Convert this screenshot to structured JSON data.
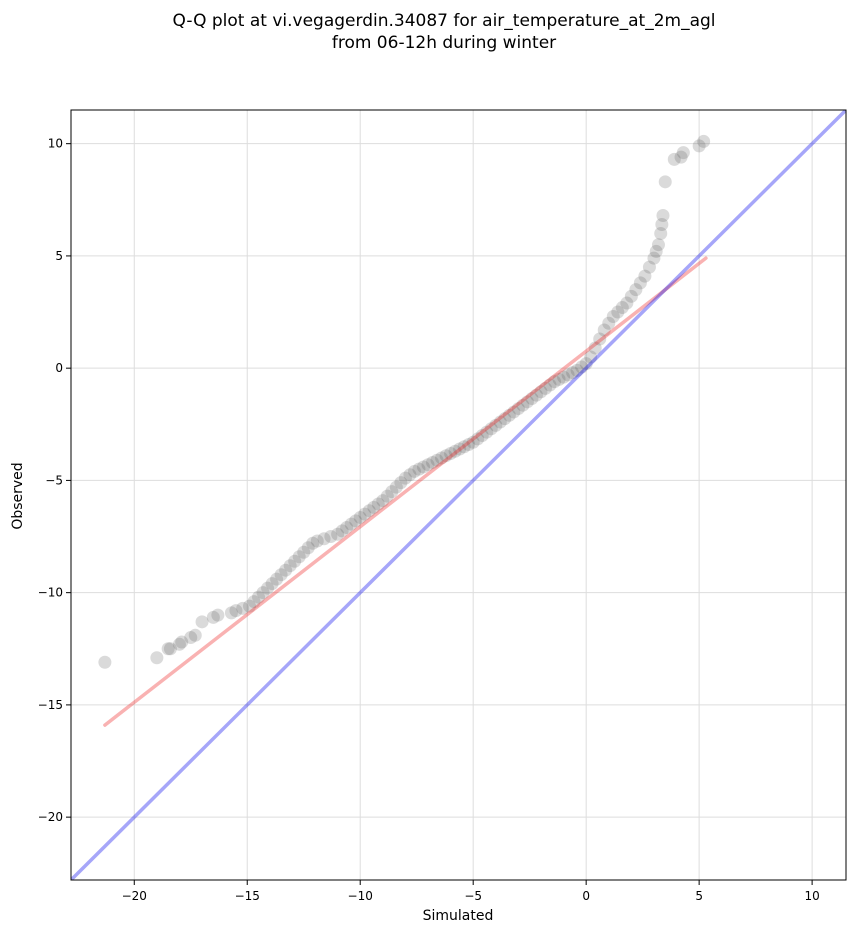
{
  "chart_data": {
    "type": "scatter",
    "title_lines": [
      "Q-Q plot at vi.vegagerdin.34087 for air_temperature_at_2m_agl",
      "from 06-12h during winter"
    ],
    "xlabel": "Simulated",
    "ylabel": "Observed",
    "xlim": [
      -22.8,
      11.5
    ],
    "ylim": [
      -22.8,
      11.5
    ],
    "xticks": [
      -20,
      -15,
      -10,
      -5,
      0,
      5,
      10
    ],
    "yticks": [
      -20,
      -15,
      -10,
      -5,
      0,
      5,
      10
    ],
    "tick_labels": [
      "−20",
      "−15",
      "−10",
      "−5",
      "0",
      "5",
      "10"
    ],
    "grid": true,
    "reference_line": {
      "color": "#0000ee",
      "x": [
        -22.8,
        11.5
      ],
      "y": [
        -22.8,
        11.5
      ]
    },
    "fit_line": {
      "color": "#ee2222",
      "x": [
        -21.3,
        5.3
      ],
      "y": [
        -15.9,
        4.9
      ]
    },
    "quantiles": {
      "color": "#555555",
      "x": [
        -21.3,
        -19.0,
        -18.5,
        -18.4,
        -18.0,
        -17.9,
        -17.5,
        -17.3,
        -17.0,
        -16.5,
        -16.3,
        -15.7,
        -15.5,
        -15.2,
        -14.9,
        -14.7,
        -14.5,
        -14.3,
        -14.1,
        -13.9,
        -13.7,
        -13.5,
        -13.3,
        -13.1,
        -12.9,
        -12.7,
        -12.5,
        -12.3,
        -12.1,
        -11.9,
        -11.6,
        -11.3,
        -11.0,
        -10.8,
        -10.6,
        -10.4,
        -10.2,
        -10.0,
        -9.8,
        -9.6,
        -9.4,
        -9.2,
        -9.0,
        -8.8,
        -8.6,
        -8.4,
        -8.2,
        -8.0,
        -7.8,
        -7.6,
        -7.4,
        -7.2,
        -7.0,
        -6.8,
        -6.6,
        -6.4,
        -6.2,
        -6.0,
        -5.8,
        -5.6,
        -5.4,
        -5.2,
        -5.0,
        -4.8,
        -4.6,
        -4.4,
        -4.2,
        -4.0,
        -3.8,
        -3.6,
        -3.4,
        -3.2,
        -3.0,
        -2.8,
        -2.6,
        -2.4,
        -2.2,
        -2.0,
        -1.8,
        -1.6,
        -1.4,
        -1.2,
        -1.0,
        -0.8,
        -0.6,
        -0.4,
        -0.2,
        0.0,
        0.2,
        0.4,
        0.6,
        0.8,
        1.0,
        1.2,
        1.4,
        1.6,
        1.8,
        2.0,
        2.2,
        2.4,
        2.6,
        2.8,
        3.0,
        3.1,
        3.2,
        3.3,
        3.35,
        3.4,
        3.5,
        3.9,
        4.2,
        4.3,
        5.0,
        5.2
      ],
      "y": [
        -13.1,
        -12.9,
        -12.5,
        -12.5,
        -12.3,
        -12.2,
        -12.0,
        -11.9,
        -11.3,
        -11.1,
        -11.0,
        -10.9,
        -10.8,
        -10.7,
        -10.6,
        -10.4,
        -10.2,
        -10.0,
        -9.8,
        -9.6,
        -9.4,
        -9.2,
        -9.0,
        -8.8,
        -8.6,
        -8.4,
        -8.2,
        -8.0,
        -7.8,
        -7.7,
        -7.6,
        -7.5,
        -7.4,
        -7.25,
        -7.1,
        -6.95,
        -6.8,
        -6.65,
        -6.5,
        -6.35,
        -6.2,
        -6.05,
        -5.9,
        -5.7,
        -5.5,
        -5.3,
        -5.1,
        -4.9,
        -4.75,
        -4.6,
        -4.5,
        -4.4,
        -4.3,
        -4.2,
        -4.1,
        -4.0,
        -3.9,
        -3.8,
        -3.7,
        -3.6,
        -3.5,
        -3.4,
        -3.3,
        -3.15,
        -3.0,
        -2.85,
        -2.7,
        -2.55,
        -2.4,
        -2.25,
        -2.1,
        -1.95,
        -1.8,
        -1.65,
        -1.5,
        -1.35,
        -1.2,
        -1.05,
        -0.9,
        -0.75,
        -0.6,
        -0.5,
        -0.4,
        -0.3,
        -0.2,
        -0.1,
        0.05,
        0.2,
        0.5,
        0.9,
        1.3,
        1.7,
        2.0,
        2.3,
        2.5,
        2.7,
        2.9,
        3.2,
        3.5,
        3.8,
        4.1,
        4.5,
        4.9,
        5.2,
        5.5,
        6.0,
        6.4,
        6.8,
        8.3,
        9.3,
        9.4,
        9.6,
        9.9,
        10.1
      ]
    }
  }
}
